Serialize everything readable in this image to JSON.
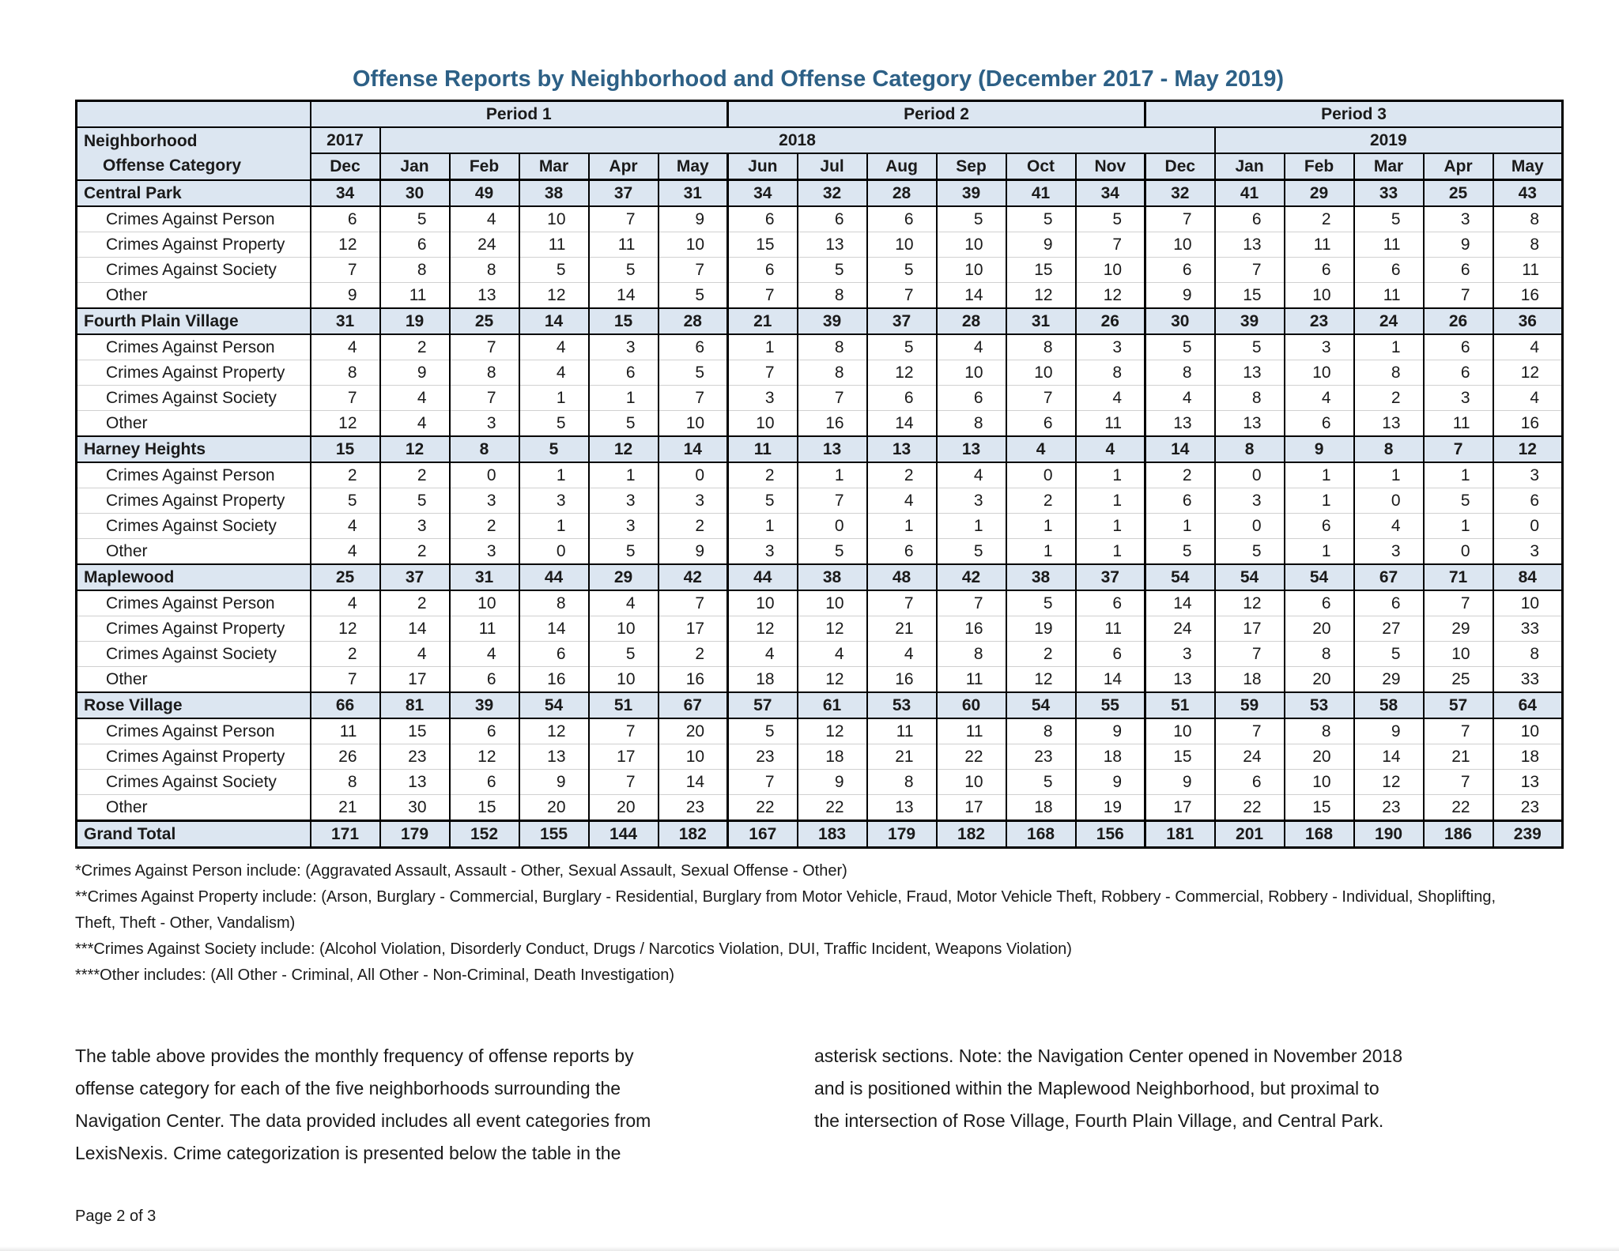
{
  "title": "Offense Reports by Neighborhood and Offense Category (December 2017 - May 2019)",
  "colors": {
    "title_blue": "#2d6086",
    "header_fill": "#dce6f1",
    "grid_dark": "#000000",
    "grid_light": "#d0d0d0"
  },
  "table": {
    "period_headers": [
      "Period 1",
      "Period 2",
      "Period 3"
    ],
    "row_header_line1": "Neighborhood",
    "row_header_line2": "Offense Category",
    "year_headers": [
      "2017",
      "2018",
      "2019"
    ],
    "months": [
      "Dec",
      "Jan",
      "Feb",
      "Mar",
      "Apr",
      "May",
      "Jun",
      "Jul",
      "Aug",
      "Sep",
      "Oct",
      "Nov",
      "Dec",
      "Jan",
      "Feb",
      "Mar",
      "Apr",
      "May"
    ],
    "neighborhoods": [
      {
        "name": "Central Park",
        "totals": [
          34,
          30,
          49,
          38,
          37,
          31,
          34,
          32,
          28,
          39,
          41,
          34,
          32,
          41,
          29,
          33,
          25,
          43
        ],
        "categories": [
          {
            "label": "Crimes Against Person",
            "values": [
              6,
              5,
              4,
              10,
              7,
              9,
              6,
              6,
              6,
              5,
              5,
              5,
              7,
              6,
              2,
              5,
              3,
              8
            ]
          },
          {
            "label": "Crimes Against Property",
            "values": [
              12,
              6,
              24,
              11,
              11,
              10,
              15,
              13,
              10,
              10,
              9,
              7,
              10,
              13,
              11,
              11,
              9,
              8
            ]
          },
          {
            "label": "Crimes Against Society",
            "values": [
              7,
              8,
              8,
              5,
              5,
              7,
              6,
              5,
              5,
              10,
              15,
              10,
              6,
              7,
              6,
              6,
              6,
              11
            ]
          },
          {
            "label": "Other",
            "values": [
              9,
              11,
              13,
              12,
              14,
              5,
              7,
              8,
              7,
              14,
              12,
              12,
              9,
              15,
              10,
              11,
              7,
              16
            ]
          }
        ]
      },
      {
        "name": "Fourth Plain Village",
        "totals": [
          31,
          19,
          25,
          14,
          15,
          28,
          21,
          39,
          37,
          28,
          31,
          26,
          30,
          39,
          23,
          24,
          26,
          36
        ],
        "categories": [
          {
            "label": "Crimes Against Person",
            "values": [
              4,
              2,
              7,
              4,
              3,
              6,
              1,
              8,
              5,
              4,
              8,
              3,
              5,
              5,
              3,
              1,
              6,
              4
            ]
          },
          {
            "label": "Crimes Against Property",
            "values": [
              8,
              9,
              8,
              4,
              6,
              5,
              7,
              8,
              12,
              10,
              10,
              8,
              8,
              13,
              10,
              8,
              6,
              12
            ]
          },
          {
            "label": "Crimes Against Society",
            "values": [
              7,
              4,
              7,
              1,
              1,
              7,
              3,
              7,
              6,
              6,
              7,
              4,
              4,
              8,
              4,
              2,
              3,
              4
            ]
          },
          {
            "label": "Other",
            "values": [
              12,
              4,
              3,
              5,
              5,
              10,
              10,
              16,
              14,
              8,
              6,
              11,
              13,
              13,
              6,
              13,
              11,
              16
            ]
          }
        ]
      },
      {
        "name": "Harney Heights",
        "totals": [
          15,
          12,
          8,
          5,
          12,
          14,
          11,
          13,
          13,
          13,
          4,
          4,
          14,
          8,
          9,
          8,
          7,
          12
        ],
        "categories": [
          {
            "label": "Crimes Against Person",
            "values": [
              2,
              2,
              0,
              1,
              1,
              0,
              2,
              1,
              2,
              4,
              0,
              1,
              2,
              0,
              1,
              1,
              1,
              3
            ]
          },
          {
            "label": "Crimes Against Property",
            "values": [
              5,
              5,
              3,
              3,
              3,
              3,
              5,
              7,
              4,
              3,
              2,
              1,
              6,
              3,
              1,
              0,
              5,
              6
            ]
          },
          {
            "label": "Crimes Against Society",
            "values": [
              4,
              3,
              2,
              1,
              3,
              2,
              1,
              0,
              1,
              1,
              1,
              1,
              1,
              0,
              6,
              4,
              1,
              0
            ]
          },
          {
            "label": "Other",
            "values": [
              4,
              2,
              3,
              0,
              5,
              9,
              3,
              5,
              6,
              5,
              1,
              1,
              5,
              5,
              1,
              3,
              0,
              3
            ]
          }
        ]
      },
      {
        "name": "Maplewood",
        "totals": [
          25,
          37,
          31,
          44,
          29,
          42,
          44,
          38,
          48,
          42,
          38,
          37,
          54,
          54,
          54,
          67,
          71,
          84
        ],
        "categories": [
          {
            "label": "Crimes Against Person",
            "values": [
              4,
              2,
              10,
              8,
              4,
              7,
              10,
              10,
              7,
              7,
              5,
              6,
              14,
              12,
              6,
              6,
              7,
              10
            ]
          },
          {
            "label": "Crimes Against Property",
            "values": [
              12,
              14,
              11,
              14,
              10,
              17,
              12,
              12,
              21,
              16,
              19,
              11,
              24,
              17,
              20,
              27,
              29,
              33
            ]
          },
          {
            "label": "Crimes Against Society",
            "values": [
              2,
              4,
              4,
              6,
              5,
              2,
              4,
              4,
              4,
              8,
              2,
              6,
              3,
              7,
              8,
              5,
              10,
              8
            ]
          },
          {
            "label": "Other",
            "values": [
              7,
              17,
              6,
              16,
              10,
              16,
              18,
              12,
              16,
              11,
              12,
              14,
              13,
              18,
              20,
              29,
              25,
              33
            ]
          }
        ]
      },
      {
        "name": "Rose Village",
        "totals": [
          66,
          81,
          39,
          54,
          51,
          67,
          57,
          61,
          53,
          60,
          54,
          55,
          51,
          59,
          53,
          58,
          57,
          64
        ],
        "categories": [
          {
            "label": "Crimes Against Person",
            "values": [
              11,
              15,
              6,
              12,
              7,
              20,
              5,
              12,
              11,
              11,
              8,
              9,
              10,
              7,
              8,
              9,
              7,
              10
            ]
          },
          {
            "label": "Crimes Against Property",
            "values": [
              26,
              23,
              12,
              13,
              17,
              10,
              23,
              18,
              21,
              22,
              23,
              18,
              15,
              24,
              20,
              14,
              21,
              18
            ]
          },
          {
            "label": "Crimes Against Society",
            "values": [
              8,
              13,
              6,
              9,
              7,
              14,
              7,
              9,
              8,
              10,
              5,
              9,
              9,
              6,
              10,
              12,
              7,
              13
            ]
          },
          {
            "label": "Other",
            "values": [
              21,
              30,
              15,
              20,
              20,
              23,
              22,
              22,
              13,
              17,
              18,
              19,
              17,
              22,
              15,
              23,
              22,
              23
            ]
          }
        ]
      }
    ],
    "grand_total": {
      "label": "Grand Total",
      "values": [
        171,
        179,
        152,
        155,
        144,
        182,
        167,
        183,
        179,
        182,
        168,
        156,
        181,
        201,
        168,
        190,
        186,
        239
      ]
    }
  },
  "footnotes": [
    "*Crimes Against Person include: (Aggravated Assault, Assault - Other, Sexual Assault, Sexual Offense - Other)",
    "**Crimes Against Property include: (Arson, Burglary - Commercial, Burglary - Residential, Burglary from Motor Vehicle, Fraud, Motor Vehicle Theft, Robbery - Commercial, Robbery - Individual, Shoplifting, Theft, Theft - Other, Vandalism)",
    "***Crimes Against Society include: (Alcohol Violation, Disorderly Conduct, Drugs / Narcotics Violation, DUI, Traffic Incident, Weapons Violation)",
    "****Other includes: (All Other - Criminal, All Other - Non-Criminal, Death Investigation)"
  ],
  "body_text": {
    "left_lines": [
      "The table above provides the monthly frequency of offense reports by",
      "offense category for each of the five neighborhoods surrounding the",
      "Navigation Center. The data provided includes all event categories from",
      "LexisNexis. Crime categorization is presented below the table in the"
    ],
    "right_lines": [
      "asterisk sections. Note: the Navigation Center opened in November 2018",
      "and is positioned within the Maplewood Neighborhood, but proximal to",
      "the intersection of Rose Village, Fourth Plain Village, and Central Park."
    ]
  },
  "page_footer": "Page 2 of 3"
}
